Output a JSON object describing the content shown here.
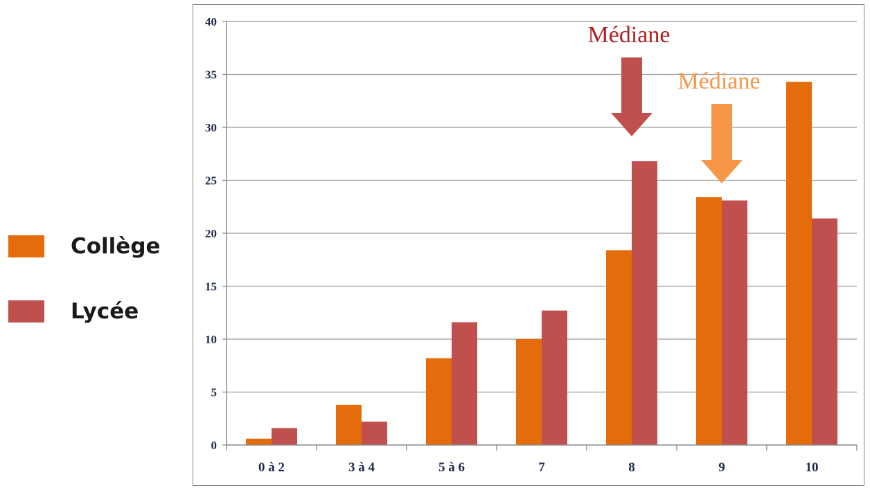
{
  "legend": {
    "items": [
      {
        "label": "Collège",
        "color": "#e46c0a"
      },
      {
        "label": "Lycée",
        "color": "#c0504d"
      }
    ]
  },
  "annotations": [
    {
      "text": "Médiane",
      "color": "#b22222",
      "arrow_color": "#c0504d",
      "category": "8"
    },
    {
      "text": "Médiane",
      "color": "#f79646",
      "arrow_color": "#f79646",
      "category": "9"
    }
  ],
  "chart_data": {
    "type": "bar",
    "categories": [
      "0 à 2",
      "3 à 4",
      "5 à 6",
      "7",
      "8",
      "9",
      "10"
    ],
    "series": [
      {
        "name": "Collège",
        "color": "#e46c0a",
        "values": [
          0.6,
          3.8,
          8.2,
          10.0,
          18.4,
          23.4,
          34.3
        ]
      },
      {
        "name": "Lycée",
        "color": "#c0504d",
        "values": [
          1.6,
          2.2,
          11.6,
          12.7,
          26.8,
          23.1,
          21.4
        ]
      }
    ],
    "ylim": [
      0,
      40
    ],
    "yticks": [
      0,
      5,
      10,
      15,
      20,
      25,
      30,
      35,
      40
    ],
    "grid": true,
    "xlabel": "",
    "ylabel": "",
    "title": ""
  }
}
